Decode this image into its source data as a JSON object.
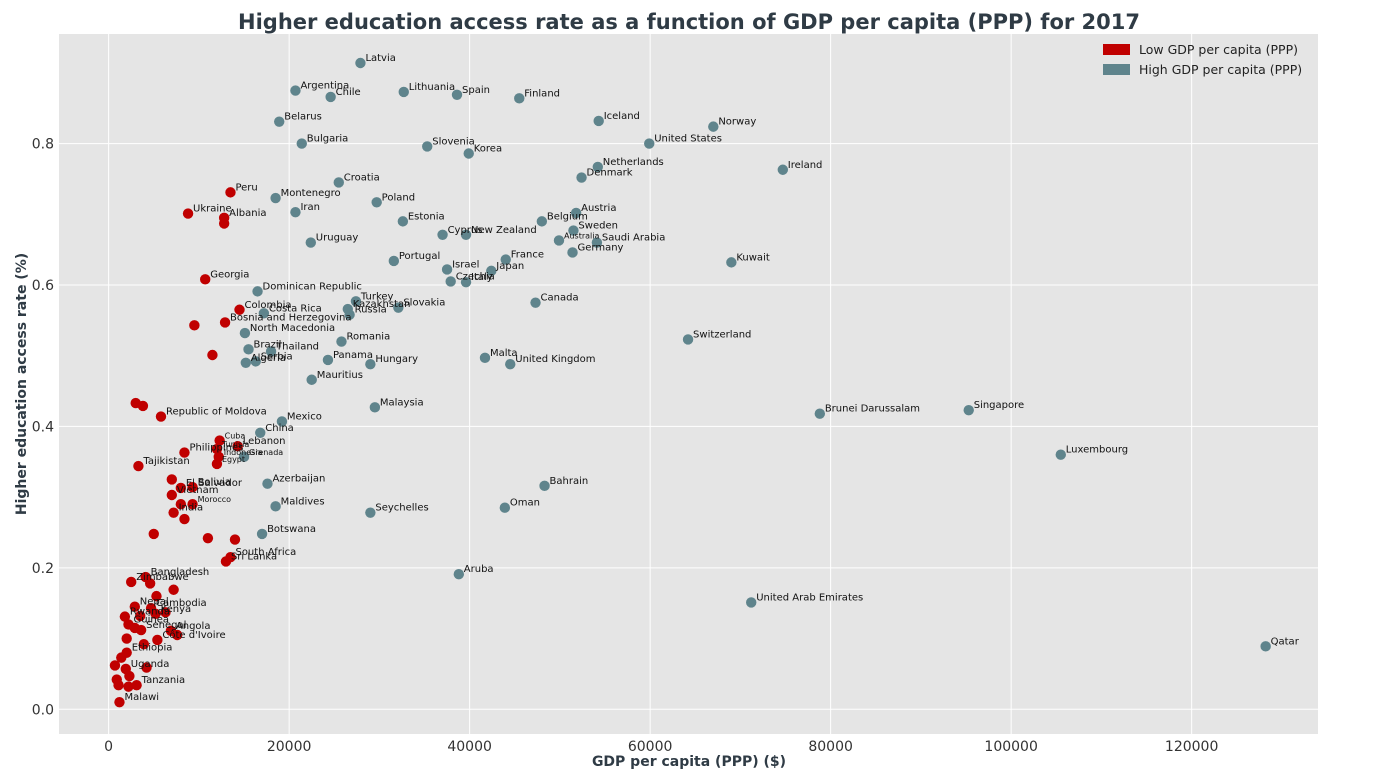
{
  "chart_data": {
    "type": "scatter",
    "title": "Higher education access rate as a function of GDP per capita (PPP) for 2017",
    "xlabel": "GDP per capita (PPP) ($)",
    "ylabel": "Higher education access rate (%)",
    "xlim": [
      -5500,
      134000
    ],
    "ylim": [
      -0.035,
      0.955
    ],
    "xticks": [
      0,
      20000,
      40000,
      60000,
      80000,
      100000,
      120000
    ],
    "xtick_labels": [
      "0",
      "20000",
      "40000",
      "60000",
      "80000",
      "100000",
      "120000"
    ],
    "yticks": [
      0.0,
      0.2,
      0.4,
      0.6,
      0.8
    ],
    "ytick_labels": [
      "0.0",
      "0.2",
      "0.4",
      "0.6",
      "0.8"
    ],
    "grid": true,
    "legend_position": "top-right",
    "colors": {
      "low": "#c00000",
      "high": "#5f848c",
      "background": "#e5e5e5",
      "grid": "#ffffff"
    },
    "series": [
      {
        "name": "Low GDP per capita (PPP)",
        "key": "low",
        "points": [
          {
            "x": 13500,
            "y": 0.731,
            "label": "Peru"
          },
          {
            "x": 8800,
            "y": 0.701,
            "label": "Ukraine"
          },
          {
            "x": 12800,
            "y": 0.695,
            "label": "Albania"
          },
          {
            "x": 12800,
            "y": 0.687,
            "label": ""
          },
          {
            "x": 10700,
            "y": 0.608,
            "label": "Georgia"
          },
          {
            "x": 14500,
            "y": 0.565,
            "label": "Colombia"
          },
          {
            "x": 12900,
            "y": 0.547,
            "label": "Bosnia and Herzegovina"
          },
          {
            "x": 9500,
            "y": 0.543,
            "label": ""
          },
          {
            "x": 11500,
            "y": 0.501,
            "label": ""
          },
          {
            "x": 3000,
            "y": 0.433,
            "label": ""
          },
          {
            "x": 3800,
            "y": 0.429,
            "label": ""
          },
          {
            "x": 5800,
            "y": 0.414,
            "label": "Republic of Moldova"
          },
          {
            "x": 12300,
            "y": 0.38,
            "label": "Cuba"
          },
          {
            "x": 14300,
            "y": 0.372,
            "label": "Lebanon"
          },
          {
            "x": 12000,
            "y": 0.368,
            "label": "Tunisia"
          },
          {
            "x": 8400,
            "y": 0.363,
            "label": "Philippines"
          },
          {
            "x": 12200,
            "y": 0.357,
            "label": "Indonesia"
          },
          {
            "x": 12000,
            "y": 0.347,
            "label": "Egypt"
          },
          {
            "x": 3300,
            "y": 0.344,
            "label": "Tajikistan"
          },
          {
            "x": 7000,
            "y": 0.325,
            "label": ""
          },
          {
            "x": 8000,
            "y": 0.313,
            "label": "El Salvador"
          },
          {
            "x": 9300,
            "y": 0.314,
            "label": "Bolivia"
          },
          {
            "x": 7000,
            "y": 0.303,
            "label": "Vietnam"
          },
          {
            "x": 8000,
            "y": 0.29,
            "label": ""
          },
          {
            "x": 9300,
            "y": 0.29,
            "label": "Morocco"
          },
          {
            "x": 7200,
            "y": 0.278,
            "label": "India"
          },
          {
            "x": 8400,
            "y": 0.269,
            "label": ""
          },
          {
            "x": 5000,
            "y": 0.248,
            "label": ""
          },
          {
            "x": 11000,
            "y": 0.242,
            "label": ""
          },
          {
            "x": 14000,
            "y": 0.24,
            "label": ""
          },
          {
            "x": 13500,
            "y": 0.215,
            "label": "South Africa"
          },
          {
            "x": 13000,
            "y": 0.209,
            "label": "Sri Lanka"
          },
          {
            "x": 4100,
            "y": 0.187,
            "label": "Bangladesh"
          },
          {
            "x": 4600,
            "y": 0.178,
            "label": ""
          },
          {
            "x": 2500,
            "y": 0.18,
            "label": "Zimbabwe"
          },
          {
            "x": 7200,
            "y": 0.169,
            "label": ""
          },
          {
            "x": 5300,
            "y": 0.16,
            "label": ""
          },
          {
            "x": 2900,
            "y": 0.145,
            "label": "Nepal"
          },
          {
            "x": 4700,
            "y": 0.143,
            "label": "Cambodia"
          },
          {
            "x": 5200,
            "y": 0.135,
            "label": "Kenya"
          },
          {
            "x": 6300,
            "y": 0.137,
            "label": ""
          },
          {
            "x": 1800,
            "y": 0.131,
            "label": "Rwanda"
          },
          {
            "x": 3500,
            "y": 0.132,
            "label": ""
          },
          {
            "x": 2200,
            "y": 0.12,
            "label": "Guinea"
          },
          {
            "x": 2900,
            "y": 0.115,
            "label": ""
          },
          {
            "x": 3600,
            "y": 0.112,
            "label": "Senegal"
          },
          {
            "x": 6900,
            "y": 0.111,
            "label": "Angola"
          },
          {
            "x": 7600,
            "y": 0.105,
            "label": ""
          },
          {
            "x": 2000,
            "y": 0.1,
            "label": ""
          },
          {
            "x": 5400,
            "y": 0.098,
            "label": "Côte d'Ivoire"
          },
          {
            "x": 3900,
            "y": 0.092,
            "label": ""
          },
          {
            "x": 2000,
            "y": 0.08,
            "label": "Ethiopia"
          },
          {
            "x": 1400,
            "y": 0.073,
            "label": ""
          },
          {
            "x": 700,
            "y": 0.062,
            "label": ""
          },
          {
            "x": 1900,
            "y": 0.057,
            "label": "Uganda"
          },
          {
            "x": 4200,
            "y": 0.059,
            "label": ""
          },
          {
            "x": 2300,
            "y": 0.047,
            "label": ""
          },
          {
            "x": 900,
            "y": 0.042,
            "label": ""
          },
          {
            "x": 3100,
            "y": 0.034,
            "label": "Tanzania"
          },
          {
            "x": 1100,
            "y": 0.034,
            "label": ""
          },
          {
            "x": 2200,
            "y": 0.032,
            "label": ""
          },
          {
            "x": 1200,
            "y": 0.01,
            "label": "Malawi"
          }
        ]
      },
      {
        "name": "High GDP per capita (PPP)",
        "key": "high",
        "points": [
          {
            "x": 27900,
            "y": 0.914,
            "label": "Latvia"
          },
          {
            "x": 20700,
            "y": 0.875,
            "label": "Argentina"
          },
          {
            "x": 24600,
            "y": 0.866,
            "label": "Chile"
          },
          {
            "x": 32700,
            "y": 0.873,
            "label": "Lithuania"
          },
          {
            "x": 38600,
            "y": 0.869,
            "label": "Spain"
          },
          {
            "x": 45500,
            "y": 0.864,
            "label": "Finland"
          },
          {
            "x": 18900,
            "y": 0.831,
            "label": "Belarus"
          },
          {
            "x": 54300,
            "y": 0.832,
            "label": "Iceland"
          },
          {
            "x": 67000,
            "y": 0.824,
            "label": "Norway"
          },
          {
            "x": 21400,
            "y": 0.8,
            "label": "Bulgaria"
          },
          {
            "x": 35300,
            "y": 0.796,
            "label": "Slovenia"
          },
          {
            "x": 39900,
            "y": 0.786,
            "label": "Korea"
          },
          {
            "x": 59900,
            "y": 0.8,
            "label": "United States"
          },
          {
            "x": 54200,
            "y": 0.767,
            "label": "Netherlands"
          },
          {
            "x": 52400,
            "y": 0.752,
            "label": "Denmark"
          },
          {
            "x": 74700,
            "y": 0.763,
            "label": "Ireland"
          },
          {
            "x": 25500,
            "y": 0.745,
            "label": "Croatia"
          },
          {
            "x": 18500,
            "y": 0.723,
            "label": "Montenegro"
          },
          {
            "x": 29700,
            "y": 0.717,
            "label": "Poland"
          },
          {
            "x": 20700,
            "y": 0.703,
            "label": "Iran"
          },
          {
            "x": 51800,
            "y": 0.702,
            "label": "Austria"
          },
          {
            "x": 32600,
            "y": 0.69,
            "label": "Estonia"
          },
          {
            "x": 48000,
            "y": 0.69,
            "label": "Belgium"
          },
          {
            "x": 51500,
            "y": 0.677,
            "label": "Sweden"
          },
          {
            "x": 37000,
            "y": 0.671,
            "label": "Cyprus"
          },
          {
            "x": 39600,
            "y": 0.671,
            "label": "New Zealand"
          },
          {
            "x": 49900,
            "y": 0.663,
            "label": "Australia"
          },
          {
            "x": 54100,
            "y": 0.66,
            "label": "Saudi Arabia"
          },
          {
            "x": 22400,
            "y": 0.66,
            "label": "Uruguay"
          },
          {
            "x": 51400,
            "y": 0.646,
            "label": "Germany"
          },
          {
            "x": 31600,
            "y": 0.634,
            "label": "Portugal"
          },
          {
            "x": 44000,
            "y": 0.636,
            "label": "France"
          },
          {
            "x": 69000,
            "y": 0.632,
            "label": "Kuwait"
          },
          {
            "x": 37500,
            "y": 0.622,
            "label": "Israel"
          },
          {
            "x": 42400,
            "y": 0.62,
            "label": "Japan"
          },
          {
            "x": 37900,
            "y": 0.605,
            "label": "Czechia"
          },
          {
            "x": 39600,
            "y": 0.604,
            "label": "Italy"
          },
          {
            "x": 16500,
            "y": 0.591,
            "label": "Dominican Republic"
          },
          {
            "x": 47300,
            "y": 0.575,
            "label": "Canada"
          },
          {
            "x": 27400,
            "y": 0.577,
            "label": "Turkey"
          },
          {
            "x": 26500,
            "y": 0.566,
            "label": "Kazakhstan"
          },
          {
            "x": 32100,
            "y": 0.568,
            "label": "Slovakia"
          },
          {
            "x": 17200,
            "y": 0.56,
            "label": "Costa Rica"
          },
          {
            "x": 26700,
            "y": 0.558,
            "label": "Russia"
          },
          {
            "x": 15100,
            "y": 0.532,
            "label": "North Macedonia"
          },
          {
            "x": 64200,
            "y": 0.523,
            "label": "Switzerland"
          },
          {
            "x": 25800,
            "y": 0.52,
            "label": "Romania"
          },
          {
            "x": 15500,
            "y": 0.509,
            "label": "Brazil"
          },
          {
            "x": 18000,
            "y": 0.506,
            "label": "Thailand"
          },
          {
            "x": 41700,
            "y": 0.497,
            "label": "Malta"
          },
          {
            "x": 24300,
            "y": 0.494,
            "label": "Panama"
          },
          {
            "x": 15200,
            "y": 0.49,
            "label": "Algeria"
          },
          {
            "x": 16300,
            "y": 0.492,
            "label": "Serbia"
          },
          {
            "x": 29000,
            "y": 0.488,
            "label": "Hungary"
          },
          {
            "x": 44500,
            "y": 0.488,
            "label": "United Kingdom"
          },
          {
            "x": 22500,
            "y": 0.466,
            "label": "Mauritius"
          },
          {
            "x": 29500,
            "y": 0.427,
            "label": "Malaysia"
          },
          {
            "x": 78800,
            "y": 0.418,
            "label": "Brunei Darussalam"
          },
          {
            "x": 95300,
            "y": 0.423,
            "label": "Singapore"
          },
          {
            "x": 19200,
            "y": 0.407,
            "label": "Mexico"
          },
          {
            "x": 16800,
            "y": 0.391,
            "label": "China"
          },
          {
            "x": 15000,
            "y": 0.357,
            "label": "Grenada"
          },
          {
            "x": 105500,
            "y": 0.36,
            "label": "Luxembourg"
          },
          {
            "x": 17600,
            "y": 0.319,
            "label": "Azerbaijan"
          },
          {
            "x": 48300,
            "y": 0.316,
            "label": "Bahrain"
          },
          {
            "x": 18500,
            "y": 0.287,
            "label": "Maldives"
          },
          {
            "x": 43900,
            "y": 0.285,
            "label": "Oman"
          },
          {
            "x": 29000,
            "y": 0.278,
            "label": "Seychelles"
          },
          {
            "x": 17000,
            "y": 0.248,
            "label": "Botswana"
          },
          {
            "x": 38800,
            "y": 0.191,
            "label": "Aruba"
          },
          {
            "x": 71200,
            "y": 0.151,
            "label": "United Arab Emirates"
          },
          {
            "x": 128200,
            "y": 0.089,
            "label": "Qatar"
          }
        ]
      }
    ]
  }
}
